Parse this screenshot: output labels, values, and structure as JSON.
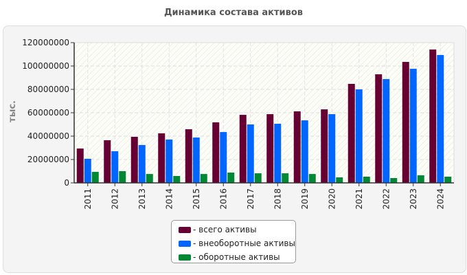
{
  "chart_data": {
    "type": "bar",
    "title": "Динамика состава активов",
    "ylabel": "тыс.",
    "xlabel": "",
    "ylim": [
      0,
      120000000
    ],
    "yticks": [
      0,
      20000000,
      40000000,
      60000000,
      80000000,
      100000000,
      120000000
    ],
    "grid": true,
    "legend_position": "bottom",
    "categories": [
      "2011",
      "2012",
      "2013",
      "2014",
      "2015",
      "2016",
      "2017",
      "2018",
      "2019",
      "2020",
      "2021",
      "2022",
      "2023",
      "2024"
    ],
    "series": [
      {
        "name": "- всего активы",
        "color": "#660033",
        "values": [
          29400000,
          36500000,
          39400000,
          42400000,
          45900000,
          51800000,
          58200000,
          58800000,
          61200000,
          62900000,
          84700000,
          92900000,
          103500000,
          114100000
        ]
      },
      {
        "name": "- внеоборотные активы",
        "color": "#0066ff",
        "values": [
          20600000,
          27100000,
          32400000,
          37100000,
          38800000,
          43500000,
          50000000,
          50600000,
          53500000,
          58800000,
          80000000,
          88800000,
          97600000,
          109400000
        ]
      },
      {
        "name": "- оборотные активы",
        "color": "#008833",
        "values": [
          9400000,
          10000000,
          7600000,
          5900000,
          7600000,
          8800000,
          8200000,
          8200000,
          7600000,
          4700000,
          5300000,
          4100000,
          6500000,
          5300000
        ]
      }
    ]
  }
}
